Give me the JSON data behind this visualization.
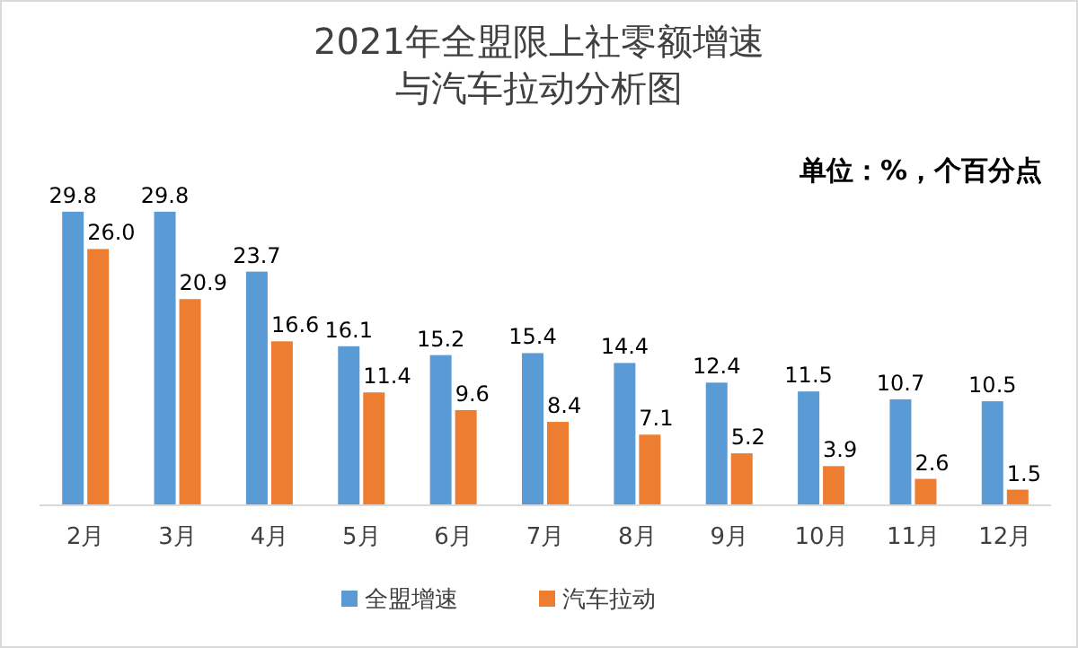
{
  "chart_data": {
    "type": "bar",
    "title": "2021年全盟限上社零额增速与汽车拉动分析图",
    "categories": [
      "2月",
      "3月",
      "4月",
      "5月",
      "6月",
      "7月",
      "8月",
      "9月",
      "10月",
      "11月",
      "12月"
    ],
    "series": [
      {
        "name": "全盟增速",
        "color": "#5b9bd5",
        "values": [
          29.8,
          29.8,
          23.7,
          16.1,
          15.2,
          15.4,
          14.4,
          12.4,
          11.5,
          10.7,
          10.5
        ],
        "value_labels": [
          "29.8",
          "29.8",
          "23.7",
          "16.1",
          "15.2",
          "15.4",
          "14.4",
          "12.4",
          "11.5",
          "10.7",
          "10.5"
        ]
      },
      {
        "name": "汽车拉动",
        "color": "#ed7d31",
        "values": [
          26.0,
          20.9,
          16.6,
          11.4,
          9.6,
          8.4,
          7.1,
          5.2,
          3.9,
          2.6,
          1.5
        ],
        "value_labels": [
          "26.0",
          "20.9",
          "16.6",
          "11.4",
          "9.6",
          "8.4",
          "7.1",
          "5.2",
          "3.9",
          "2.6",
          "1.5"
        ]
      }
    ],
    "annotations": [
      "单位：%，个百分点"
    ],
    "legend": "bottom"
  }
}
